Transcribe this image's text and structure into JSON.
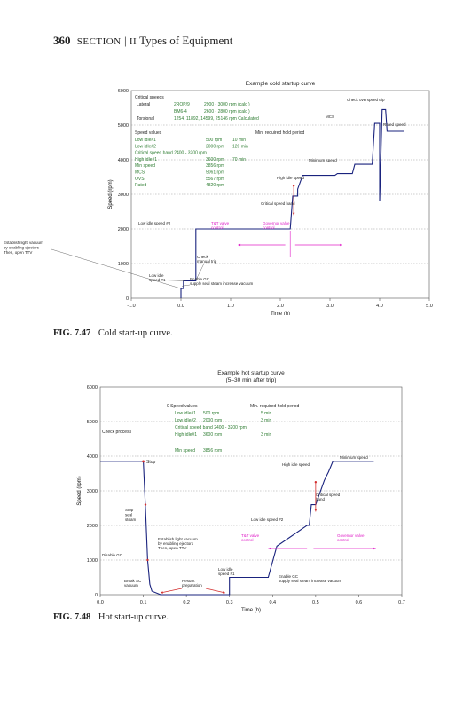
{
  "page": {
    "number": "360",
    "section": "SECTION",
    "part": "II",
    "part_title": "Types of Equipment"
  },
  "figures": [
    {
      "label": "FIG. 7.47",
      "caption": "Cold start-up curve."
    },
    {
      "label": "FIG. 7.48",
      "caption": "Hot start-up curve."
    }
  ],
  "colors": {
    "curve": "#1a237e",
    "green": "#2e7d32",
    "magenta": "#e020c8",
    "red": "#d32f2f",
    "grid": "#999999"
  },
  "chart_data": [
    {
      "type": "line",
      "title": "Example cold startup curve",
      "xlabel": "Time (h)",
      "ylabel": "Speed (rpm)",
      "xlim": [
        -1.0,
        5.0
      ],
      "ylim": [
        0,
        6000
      ],
      "xticks": [
        "-1.0",
        "0.0",
        "1.0",
        "2.0",
        "3.0",
        "4.0",
        "5.0"
      ],
      "yticks": [
        "0",
        "1000",
        "2000",
        "3000",
        "4000",
        "5000",
        "6000"
      ],
      "series": [
        {
          "x": [
            0.0,
            0.0,
            0.05,
            0.05,
            0.25,
            0.3,
            0.3,
            2.2,
            2.25,
            2.35,
            2.35,
            2.45,
            3.1,
            3.15,
            3.15,
            3.45,
            3.5,
            3.5,
            3.85,
            3.9,
            3.9,
            4.0,
            4.0,
            4.05,
            4.12,
            4.15,
            4.15,
            4.5
          ],
          "y": [
            0,
            280,
            280,
            500,
            500,
            500,
            2000,
            2000,
            2950,
            2950,
            3150,
            3550,
            3550,
            3600,
            3600,
            3600,
            3870,
            3870,
            3870,
            5050,
            5050,
            5050,
            2800,
            5450,
            5450,
            4820,
            4820,
            4820
          ]
        }
      ],
      "annotations": {
        "critical_speeds_heading": "Critical speeds",
        "critical_speeds": [
          {
            "name": "Lateral",
            "mode": "2ROP/9",
            "range": "2900 - 3000 rpm (calc )"
          },
          {
            "name": "",
            "mode": "BM6-4",
            "range": "2600 - 2800 rpm (calc )"
          },
          {
            "name": "Torsional",
            "mode": "",
            "range": "1254, 11892, 14599, 25146 rpm Calculated"
          }
        ],
        "speed_values_heading": "Speed values",
        "min_hold_heading": "Min. required hold period",
        "speed_values": [
          {
            "name": "Low idle#1",
            "rpm": "500 rpm",
            "hold": "10 min"
          },
          {
            "name": "Low idle#2",
            "rpm": "2000 rpm",
            "hold": "120 min"
          },
          {
            "name": "Critical speed band  2400 - 3200 rpm",
            "rpm": "",
            "hold": ""
          },
          {
            "name": "High idle#1",
            "rpm": "3600 rpm",
            "hold": "70 min"
          },
          {
            "name": "Min speed",
            "rpm": "3856 rpm",
            "hold": ""
          },
          {
            "name": "MCS",
            "rpm": "5061 rpm",
            "hold": ""
          },
          {
            "name": "OVS",
            "rpm": "5567 rpm",
            "hold": ""
          },
          {
            "name": "Rated",
            "rpm": "4820 rpm",
            "hold": ""
          }
        ],
        "check_overspeed_trip": "Check overspeed trip",
        "mcs": "MCS",
        "rated_speed": "Rated speed",
        "minimum_speed": "Minimum speed",
        "high_idle_speed": "High idle speed",
        "critical_speed_band": "Critical speed band",
        "low_idle_speed_2": "Low idle speed #2",
        "tt_valve_control": "T&T valve\ncontrol",
        "governor_valve_control": "Governor valve\ncontrol",
        "establish_vacuum": "Establish light vacuum\nby enabling ejectors\nThen, open TTV",
        "check_manual_trip": "Check\nmanual trip",
        "low_idle_speed_1": "Low idle\nspeed #1",
        "enable_gc": "Enable GC\nsupply seal steam increase vacuum"
      }
    },
    {
      "type": "line",
      "title": "Example hot startup curve",
      "subtitle": "(5–30 min after trip)",
      "xlabel": "Time (h)",
      "ylabel": "Speed (rpm)",
      "xlim": [
        0.0,
        0.7
      ],
      "ylim": [
        0,
        6000
      ],
      "xticks": [
        "0.0",
        "0.1",
        "0.2",
        "0.3",
        "0.4",
        "0.5",
        "0.6",
        "0.7"
      ],
      "yticks": [
        "0",
        "1000",
        "2000",
        "3000",
        "4000",
        "5000",
        "6000"
      ],
      "series": [
        {
          "x": [
            0.0,
            0.01,
            0.1,
            0.105,
            0.11,
            0.115,
            0.12,
            0.14,
            0.29,
            0.3,
            0.3,
            0.305,
            0.39,
            0.41,
            0.48,
            0.485,
            0.49,
            0.5,
            0.52,
            0.53,
            0.54,
            0.55,
            0.635
          ],
          "y": [
            3850,
            3850,
            3850,
            2500,
            1000,
            300,
            100,
            0,
            0,
            0,
            500,
            500,
            500,
            1400,
            2000,
            2000,
            2600,
            2600,
            3300,
            3550,
            3850,
            3850,
            3850
          ]
        }
      ],
      "annotations": {
        "speed_values_heading": "0  Speed values",
        "min_hold_heading": "Min. required hold period",
        "speed_values": [
          {
            "name": "Low idle#1",
            "rpm": "500 rpm",
            "hold": "5 min"
          },
          {
            "name": "Low idle#2",
            "rpm": "2000 rpm",
            "hold": "3 min"
          },
          {
            "name": "Critical speed band  2400 - 3200 rpm",
            "rpm": "",
            "hold": ""
          },
          {
            "name": "High idle#1",
            "rpm": "3600 rpm",
            "hold": "3 min"
          },
          {
            "name": "Min speed",
            "rpm": "3856 rpm",
            "hold": ""
          }
        ],
        "check_process": "Check process",
        "stop": "Stop",
        "stop_seal_steam": "Stop\nseal\nsteam",
        "disable_gc": "Disable GC",
        "break_sc_vacuum": "Break SC\nvacuum",
        "restart_preparation": "Restart\npreparation",
        "establish_vacuum": "Establish light vacuum\nby enabling ejectors\nThen, open TTV",
        "low_idle_speed_1": "Low idle\nspeed #1",
        "enable_gc": "Enable GC\nsupply seal steam increase vacuum",
        "low_idle_speed_2": "Low idle speed #2",
        "tt_valve_control": "T&T valve\ncontrol",
        "governor_valve_control": "Governor valve\ncontrol",
        "minimum_speed": "Minimum speed",
        "high_idle_speed": "High idle speed",
        "critical_speed_band": "Critical speed\nband"
      }
    }
  ]
}
